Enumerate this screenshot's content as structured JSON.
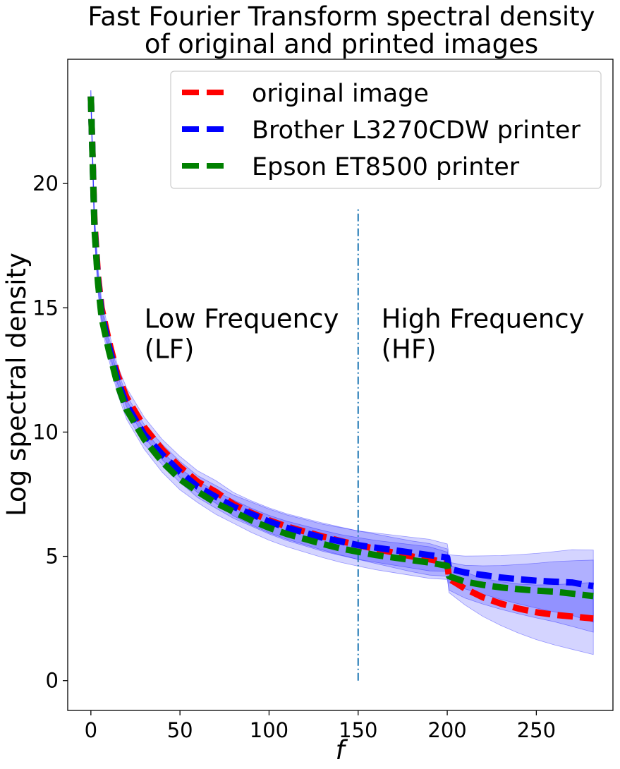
{
  "chart_data": {
    "type": "line",
    "title_line1": "Fast Fourier Transform spectral density",
    "title_line2": "of original and printed images",
    "xlabel": "f",
    "ylabel": "Log spectral density",
    "xlim": [
      -13,
      293
    ],
    "ylim": [
      -1.2,
      25.0
    ],
    "xticks": [
      0,
      50,
      100,
      150,
      200,
      250
    ],
    "yticks": [
      0,
      5,
      10,
      15,
      20
    ],
    "grid": false,
    "legend_position": "top-right",
    "divider": {
      "x": 150,
      "y_range": [
        0,
        19
      ],
      "color": "#1f77b4",
      "style": "dash-dot"
    },
    "annotations": [
      {
        "lines": [
          "Low Frequency",
          "(LF)"
        ],
        "x": 30,
        "y": 14.2
      },
      {
        "lines": [
          "High Frequency",
          "(HF)"
        ],
        "x": 163,
        "y": 14.2
      }
    ],
    "band_color": "#0000ff",
    "series": [
      {
        "name": "original image",
        "color": "#ff0000",
        "points": [
          [
            0,
            23.5
          ],
          [
            2,
            18.5
          ],
          [
            4,
            16.3
          ],
          [
            6,
            15.0
          ],
          [
            10,
            13.7
          ],
          [
            15,
            12.3
          ],
          [
            20,
            11.4
          ],
          [
            30,
            10.2
          ],
          [
            40,
            9.3
          ],
          [
            50,
            8.6
          ],
          [
            60,
            8.0
          ],
          [
            70,
            7.6
          ],
          [
            80,
            7.1
          ],
          [
            90,
            6.75
          ],
          [
            100,
            6.45
          ],
          [
            110,
            6.2
          ],
          [
            120,
            6.0
          ],
          [
            130,
            5.8
          ],
          [
            140,
            5.62
          ],
          [
            150,
            5.45
          ],
          [
            160,
            5.3
          ],
          [
            170,
            5.15
          ],
          [
            180,
            5.0
          ],
          [
            190,
            4.88
          ],
          [
            200,
            4.75
          ],
          [
            201,
            4.1
          ],
          [
            210,
            3.7
          ],
          [
            220,
            3.35
          ],
          [
            230,
            3.1
          ],
          [
            240,
            2.9
          ],
          [
            250,
            2.75
          ],
          [
            260,
            2.65
          ],
          [
            270,
            2.58
          ],
          [
            282,
            2.5
          ]
        ]
      },
      {
        "name": "Brother L3270CDW printer",
        "color": "#0000ff",
        "points": [
          [
            0,
            23.5
          ],
          [
            2,
            18.3
          ],
          [
            4,
            16.1
          ],
          [
            6,
            14.8
          ],
          [
            10,
            13.5
          ],
          [
            15,
            12.1
          ],
          [
            20,
            11.1
          ],
          [
            30,
            9.9
          ],
          [
            40,
            9.1
          ],
          [
            50,
            8.4
          ],
          [
            60,
            7.8
          ],
          [
            70,
            7.4
          ],
          [
            80,
            7.0
          ],
          [
            90,
            6.7
          ],
          [
            100,
            6.4
          ],
          [
            110,
            6.15
          ],
          [
            120,
            5.95
          ],
          [
            130,
            5.75
          ],
          [
            140,
            5.6
          ],
          [
            150,
            5.45
          ],
          [
            160,
            5.35
          ],
          [
            170,
            5.25
          ],
          [
            180,
            5.15
          ],
          [
            190,
            5.05
          ],
          [
            200,
            4.95
          ],
          [
            201,
            4.5
          ],
          [
            210,
            4.35
          ],
          [
            220,
            4.25
          ],
          [
            230,
            4.15
          ],
          [
            240,
            4.08
          ],
          [
            250,
            4.02
          ],
          [
            260,
            3.98
          ],
          [
            270,
            3.95
          ],
          [
            282,
            3.8
          ]
        ]
      },
      {
        "name": "Epson ET8500 printer",
        "color": "#008000",
        "points": [
          [
            0,
            23.5
          ],
          [
            2,
            18.2
          ],
          [
            4,
            16.0
          ],
          [
            6,
            14.6
          ],
          [
            10,
            13.3
          ],
          [
            15,
            11.9
          ],
          [
            20,
            10.9
          ],
          [
            30,
            9.7
          ],
          [
            40,
            8.8
          ],
          [
            50,
            8.1
          ],
          [
            60,
            7.6
          ],
          [
            70,
            7.15
          ],
          [
            80,
            6.8
          ],
          [
            90,
            6.45
          ],
          [
            100,
            6.15
          ],
          [
            110,
            5.9
          ],
          [
            120,
            5.7
          ],
          [
            130,
            5.5
          ],
          [
            140,
            5.32
          ],
          [
            150,
            5.18
          ],
          [
            160,
            5.05
          ],
          [
            170,
            4.95
          ],
          [
            180,
            4.85
          ],
          [
            190,
            4.75
          ],
          [
            200,
            4.62
          ],
          [
            201,
            4.2
          ],
          [
            210,
            3.98
          ],
          [
            220,
            3.85
          ],
          [
            230,
            3.75
          ],
          [
            240,
            3.68
          ],
          [
            250,
            3.62
          ],
          [
            260,
            3.58
          ],
          [
            270,
            3.5
          ],
          [
            282,
            3.4
          ]
        ]
      }
    ]
  }
}
